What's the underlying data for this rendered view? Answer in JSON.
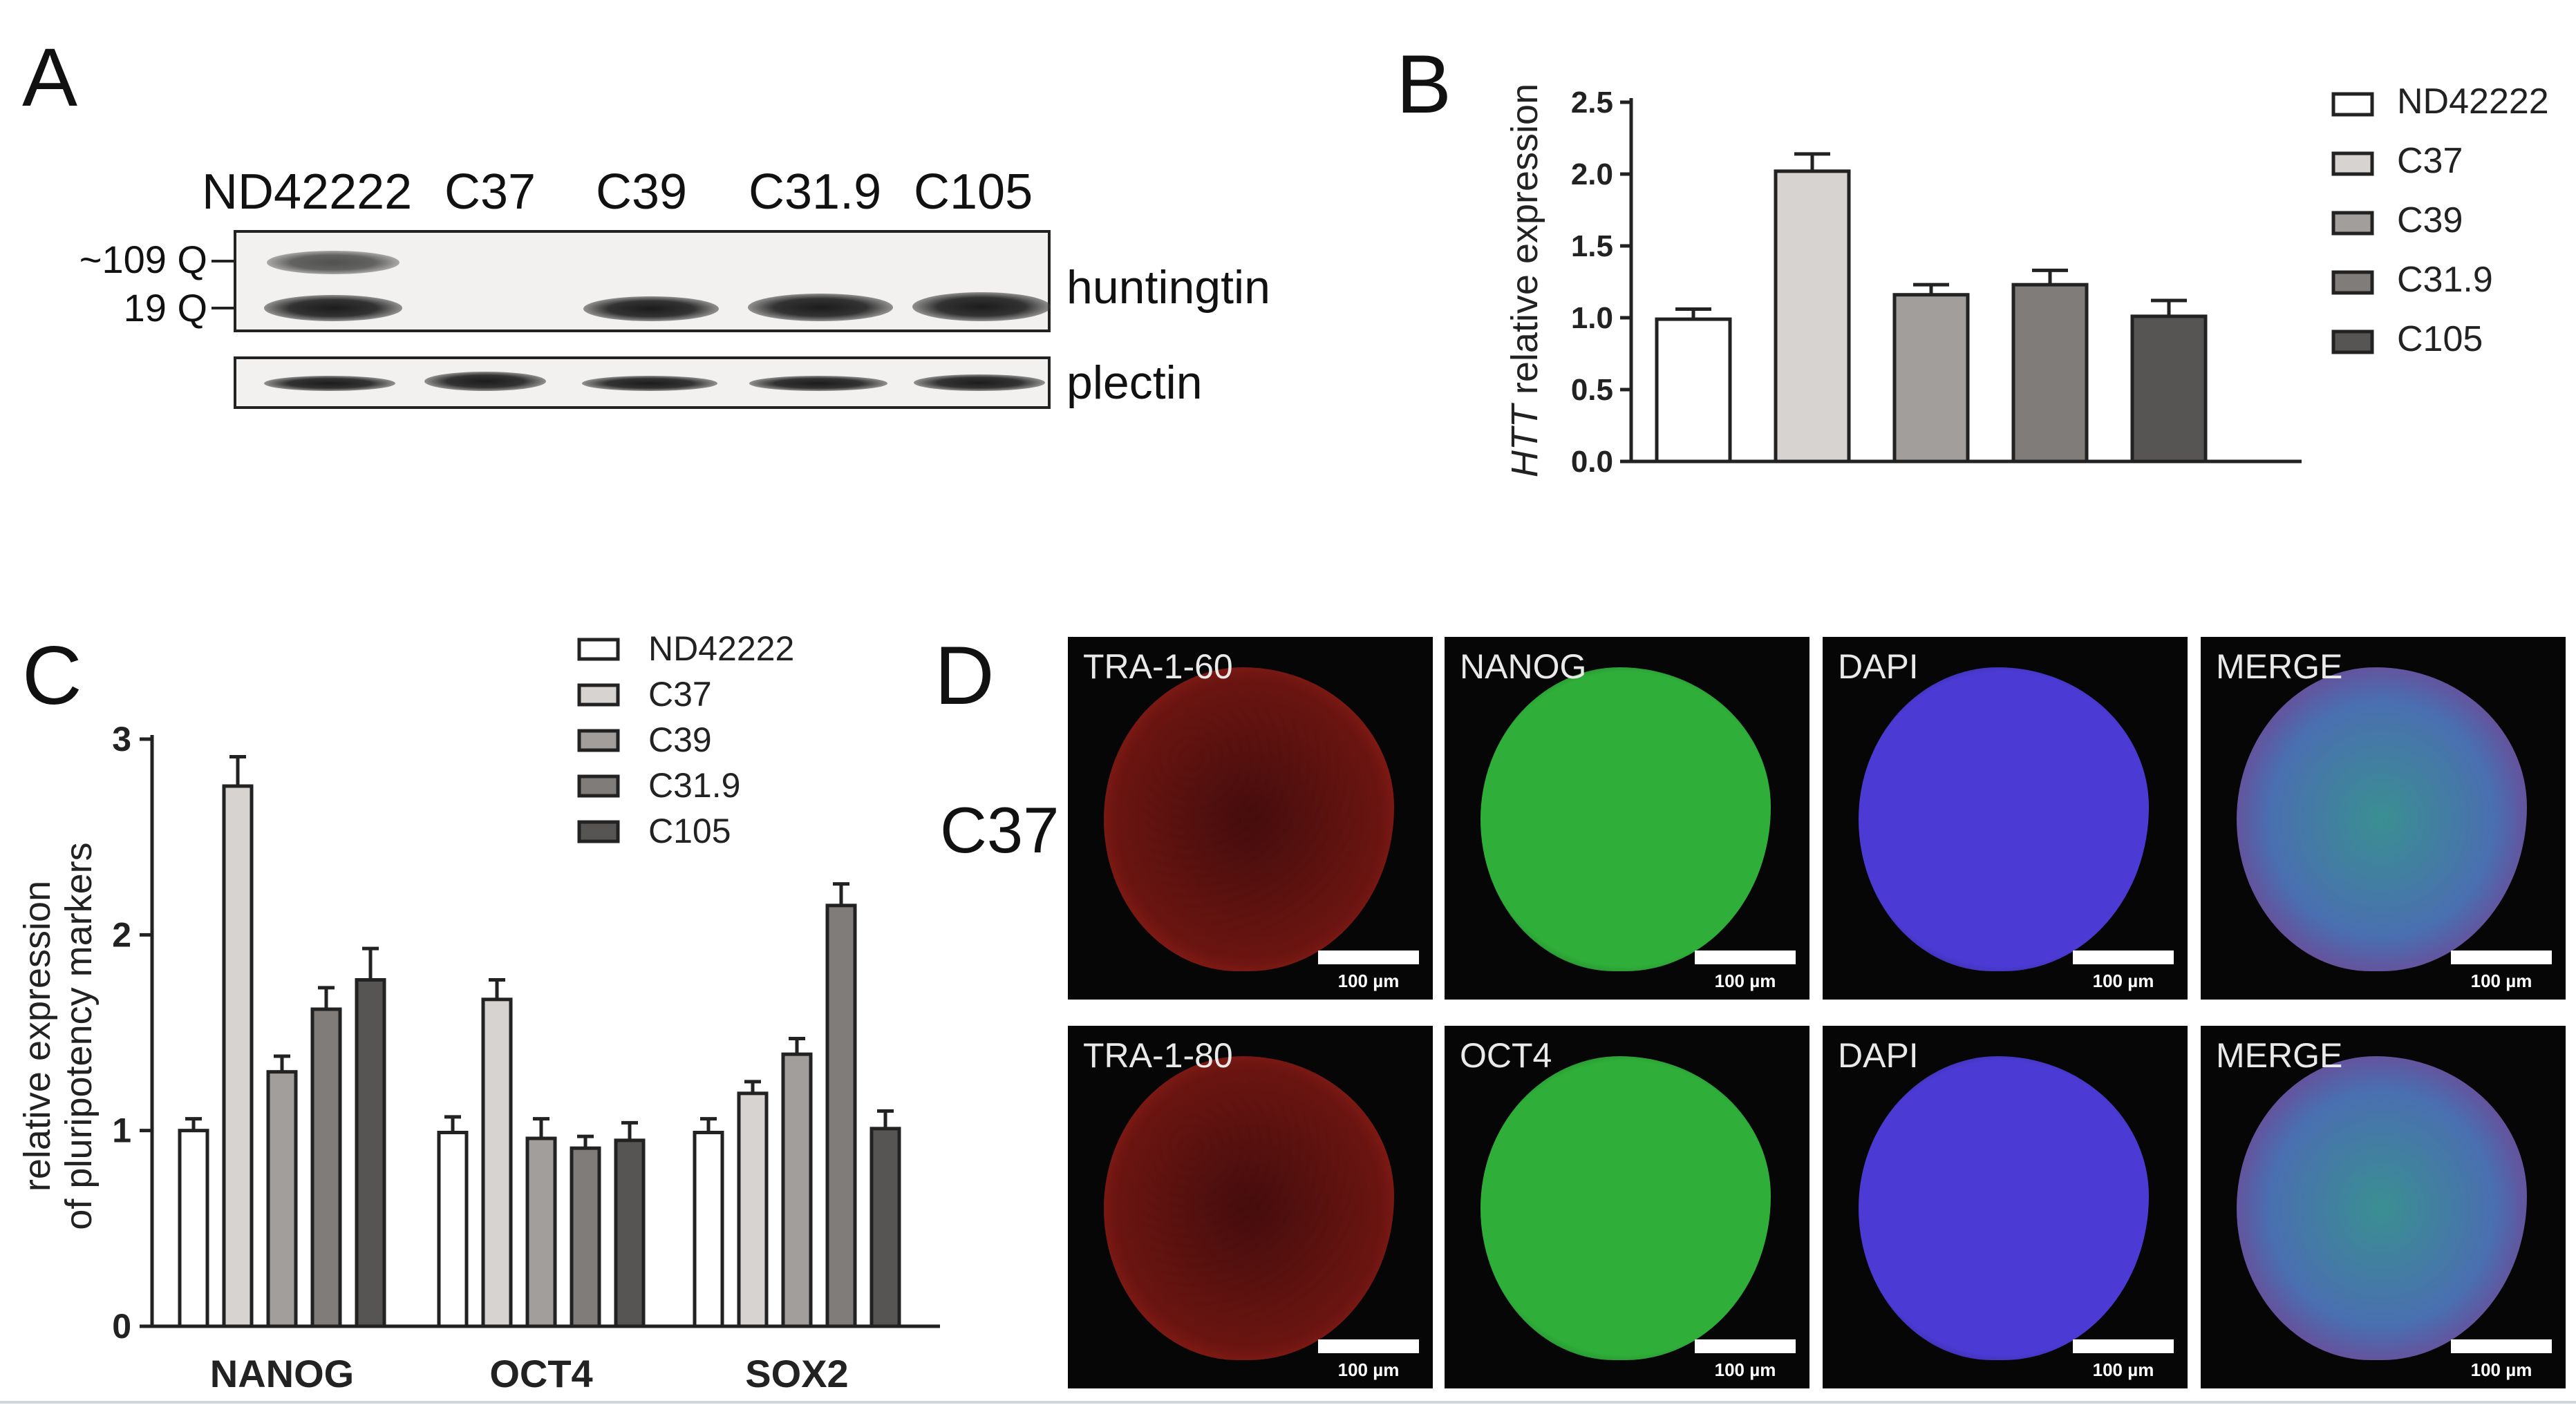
{
  "panels": {
    "a": "A",
    "b": "B",
    "c": "C",
    "d": "D"
  },
  "blot": {
    "lanes": [
      "ND42222",
      "C37",
      "C39",
      "C31.9",
      "C105"
    ],
    "mw_markers": [
      "~109 Q",
      "19 Q"
    ],
    "top_label": "huntingtin",
    "bottom_label": "plectin"
  },
  "chart_data": [
    {
      "type": "bar",
      "panel": "B",
      "ylabel_italic": "HTT",
      "ylabel_rest": " relative expression",
      "ylim": [
        0,
        2.5
      ],
      "yticks": [
        "0.0",
        "0.5",
        "1.0",
        "1.5",
        "2.0",
        "2.5"
      ],
      "categories": [
        "ND42222",
        "C37",
        "C39",
        "C31.9",
        "C105"
      ],
      "values": [
        0.99,
        2.02,
        1.16,
        1.23,
        1.01
      ],
      "errors": [
        0.07,
        0.12,
        0.07,
        0.1,
        0.11
      ],
      "legend": [
        "ND42222",
        "C37",
        "C39",
        "C31.9",
        "C105"
      ],
      "legend_position": "right",
      "colors": [
        "#ffffff",
        "#d6d3d0",
        "#a19e9b",
        "#7f7c79",
        "#575553"
      ]
    },
    {
      "type": "bar",
      "panel": "C",
      "ylabel_line1": "relative expression",
      "ylabel_line2": "of pluripotency markers",
      "ylim": [
        0,
        3
      ],
      "yticks": [
        "0",
        "1",
        "2",
        "3"
      ],
      "categories": [
        "NANOG",
        "OCT4",
        "SOX2"
      ],
      "series": [
        {
          "name": "ND42222",
          "values": [
            1.0,
            0.99,
            0.99
          ],
          "errors": [
            0.06,
            0.08,
            0.07
          ]
        },
        {
          "name": "C37",
          "values": [
            2.76,
            1.67,
            1.19
          ],
          "errors": [
            0.15,
            0.1,
            0.06
          ]
        },
        {
          "name": "C39",
          "values": [
            1.3,
            0.96,
            1.39
          ],
          "errors": [
            0.08,
            0.1,
            0.08
          ]
        },
        {
          "name": "C31.9",
          "values": [
            1.62,
            0.91,
            2.15
          ],
          "errors": [
            0.11,
            0.06,
            0.11
          ]
        },
        {
          "name": "C105",
          "values": [
            1.77,
            0.95,
            1.01
          ],
          "errors": [
            0.16,
            0.09,
            0.09
          ]
        }
      ],
      "legend_position": "top",
      "colors": [
        "#ffffff",
        "#d6d3d0",
        "#a19e9b",
        "#7f7c79",
        "#575553"
      ]
    }
  ],
  "micrographs": {
    "row_label": "C37",
    "scale_text": "100 µm",
    "row1": [
      "TRA-1-60",
      "NANOG",
      "DAPI",
      "MERGE"
    ],
    "row2": [
      "TRA-1-80",
      "OCT4",
      "DAPI",
      "MERGE"
    ],
    "stain_colors": {
      "tra": "#b3241e",
      "green": "#2fae3a",
      "dapi": "#4b3bd4",
      "merge": "#3f8f9a"
    }
  }
}
